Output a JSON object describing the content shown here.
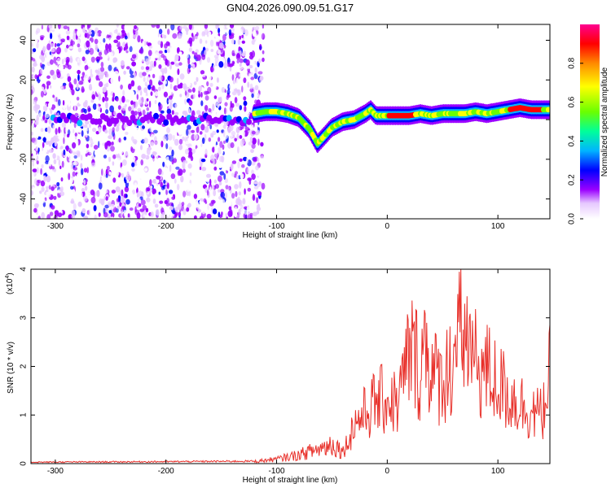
{
  "title": "GN04.2026.090.09.51.G17",
  "chart_data": [
    {
      "type": "heatmap",
      "xlabel": "Height of straight line (km)",
      "ylabel": "Frequency (Hz)",
      "xlim": [
        -322,
        147
      ],
      "ylim": [
        -50,
        48
      ],
      "xticks": [
        -300,
        -200,
        -100,
        0,
        100
      ],
      "yticks": [
        -40,
        -20,
        0,
        20,
        40
      ],
      "colorbar": {
        "label": "Normalized spectral amplitude",
        "range": [
          0,
          1
        ],
        "ticks": [
          0.0,
          0.2,
          0.4,
          0.6,
          0.8
        ],
        "tick_labels": [
          "0.0",
          "0.2",
          "0.4",
          "0.6",
          "0.8"
        ],
        "colors": [
          "#ffffff",
          "#d9a8ff",
          "#7a00ff",
          "#0000ff",
          "#00b0ff",
          "#00ff80",
          "#80ff00",
          "#ffff00",
          "#ff8000",
          "#ff0000",
          "#ff00a0"
        ]
      },
      "ridge": {
        "x": [
          -120,
          -110,
          -100,
          -90,
          -80,
          -70,
          -63,
          -58,
          -50,
          -40,
          -30,
          -20,
          -15,
          -10,
          0,
          10,
          20,
          30,
          40,
          50,
          60,
          70,
          80,
          90,
          100,
          110,
          120,
          130,
          140
        ],
        "y": [
          3,
          4,
          4,
          3,
          1,
          -5,
          -12,
          -9,
          -4,
          -1,
          0,
          3,
          5,
          2,
          2,
          2,
          2,
          3,
          2,
          3,
          3,
          3,
          4,
          3,
          4,
          5,
          6,
          5,
          5
        ]
      },
      "noise_region_x": [
        -322,
        -120
      ],
      "low_freq_band_y": 0
    },
    {
      "type": "line",
      "xlabel": "Height of straight line (km)",
      "ylabel": "SNR (10 * v/v)",
      "scale_label": "(x10",
      "scale_exp": "4",
      "scale_close": ")",
      "xlim": [
        -322,
        147
      ],
      "ylim": [
        0,
        4
      ],
      "xticks": [
        -300,
        -200,
        -100,
        0,
        100
      ],
      "yticks": [
        0,
        1,
        2,
        3,
        4
      ],
      "series": [
        {
          "color": "#e8302a",
          "envelope": {
            "x": [
              -322,
              -200,
              -120,
              -100,
              -80,
              -60,
              -50,
              -40,
              -35,
              -30,
              -20,
              -10,
              0,
              10,
              20,
              25,
              30,
              35,
              40,
              50,
              60,
              65,
              70,
              80,
              90,
              100,
              110,
              120,
              130,
              140,
              147
            ],
            "y": [
              0.03,
              0.04,
              0.05,
              0.1,
              0.2,
              0.35,
              0.45,
              0.3,
              0.6,
              1.0,
              1.25,
              1.55,
              1.6,
              1.5,
              2.8,
              2.7,
              2.3,
              3.25,
              2.2,
              2.1,
              2.6,
              3.1,
              3.3,
              2.5,
              2.3,
              2.0,
              1.7,
              1.5,
              1.3,
              1.2,
              2.2
            ]
          }
        }
      ]
    }
  ]
}
